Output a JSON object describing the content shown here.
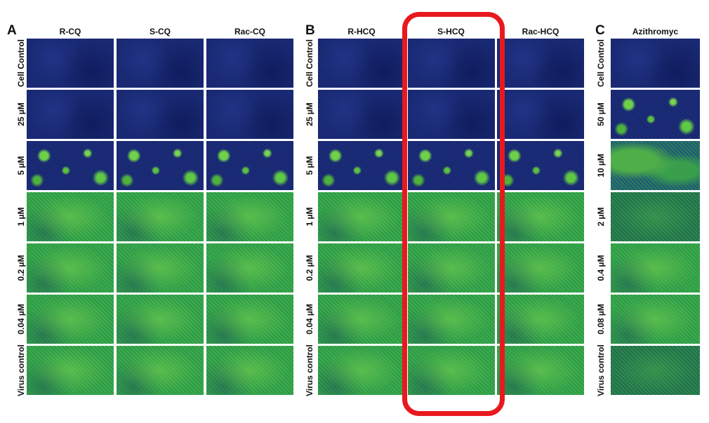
{
  "panels": [
    {
      "label": "A",
      "columns": [
        "R-CQ",
        "S-CQ",
        "Rac-CQ"
      ],
      "rows": [
        "Cell Control",
        "25 µM",
        "5 µM",
        "1 µM",
        "0.2 µM",
        "0.04 µM",
        "Virus control"
      ]
    },
    {
      "label": "B",
      "columns": [
        "R-HCQ",
        "S-HCQ",
        "Rac-HCQ"
      ],
      "rows": [
        "Cell Control",
        "25 µM",
        "5 µM",
        "1 µM",
        "0.2 µM",
        "0.04 µM",
        "Virus control"
      ]
    },
    {
      "label": "C",
      "columns": [
        "Azithromyc"
      ],
      "rows": [
        "Cell Control",
        "50 µM",
        "10 µM",
        "2 µM",
        "0.4 µM",
        "0.08 µM",
        "Virus control"
      ]
    }
  ]
}
